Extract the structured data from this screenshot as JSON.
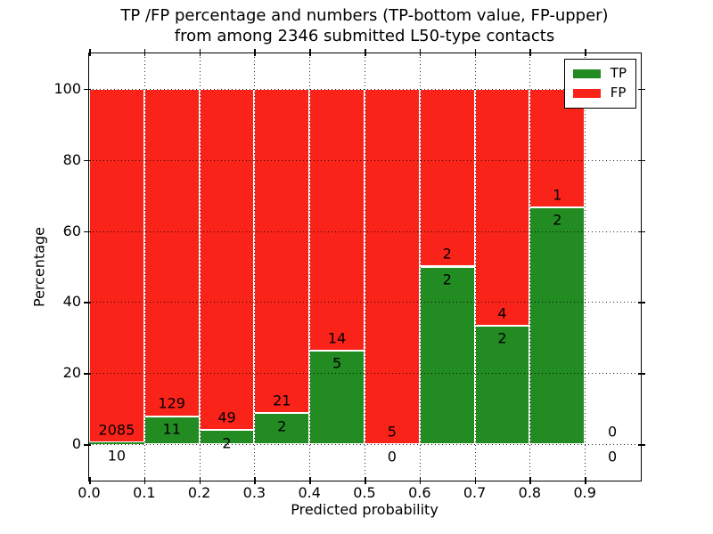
{
  "chart_data": {
    "type": "bar",
    "stacked": true,
    "normalized": "each bin scaled to 100%",
    "title_line1": "TP /FP percentage and numbers (TP-bottom value, FP-upper)",
    "title_line2": "from among 2346 submitted L50-type contacts",
    "title": "TP /FP percentage and numbers (TP-bottom value, FP-upper) from among 2346 submitted L50-type contacts",
    "xlabel": "Predicted probability",
    "ylabel": "Percentage",
    "xlim": [
      0.0,
      1.0
    ],
    "ylim": [
      -10,
      110
    ],
    "grid": true,
    "legend_position": "upper right",
    "total_contacts": 2346,
    "bin_width": 0.1,
    "annotation_rule": "FP count printed above TP/FP boundary, TP count printed below it",
    "label_offset_pct": 3.6,
    "series": [
      {
        "name": "TP",
        "color": "#228b22"
      },
      {
        "name": "FP",
        "color": "#fa231a"
      }
    ],
    "xticks": [
      {
        "value": 0.0,
        "label": "0.0"
      },
      {
        "value": 0.1,
        "label": "0.1"
      },
      {
        "value": 0.2,
        "label": "0.2"
      },
      {
        "value": 0.3,
        "label": "0.3"
      },
      {
        "value": 0.4,
        "label": "0.4"
      },
      {
        "value": 0.5,
        "label": "0.5"
      },
      {
        "value": 0.6,
        "label": "0.6"
      },
      {
        "value": 0.7,
        "label": "0.7"
      },
      {
        "value": 0.8,
        "label": "0.8"
      },
      {
        "value": 0.9,
        "label": "0.9"
      }
    ],
    "yticks": [
      {
        "value": 0,
        "label": "0"
      },
      {
        "value": 20,
        "label": "20"
      },
      {
        "value": 40,
        "label": "40"
      },
      {
        "value": 60,
        "label": "60"
      },
      {
        "value": 80,
        "label": "80"
      },
      {
        "value": 100,
        "label": "100"
      }
    ],
    "bins": [
      {
        "x_start": 0.0,
        "x_end": 0.1,
        "tp_count": 10,
        "fp_count": 2085,
        "tp_pct": 0.48,
        "fp_pct": 99.52
      },
      {
        "x_start": 0.1,
        "x_end": 0.2,
        "tp_count": 11,
        "fp_count": 129,
        "tp_pct": 7.86,
        "fp_pct": 92.14
      },
      {
        "x_start": 0.2,
        "x_end": 0.3,
        "tp_count": 2,
        "fp_count": 49,
        "tp_pct": 3.92,
        "fp_pct": 96.08
      },
      {
        "x_start": 0.3,
        "x_end": 0.4,
        "tp_count": 2,
        "fp_count": 21,
        "tp_pct": 8.7,
        "fp_pct": 91.3
      },
      {
        "x_start": 0.4,
        "x_end": 0.5,
        "tp_count": 5,
        "fp_count": 14,
        "tp_pct": 26.32,
        "fp_pct": 73.68
      },
      {
        "x_start": 0.5,
        "x_end": 0.6,
        "tp_count": 0,
        "fp_count": 5,
        "tp_pct": 0,
        "fp_pct": 100
      },
      {
        "x_start": 0.6,
        "x_end": 0.7,
        "tp_count": 2,
        "fp_count": 2,
        "tp_pct": 50,
        "fp_pct": 50
      },
      {
        "x_start": 0.7,
        "x_end": 0.8,
        "tp_count": 2,
        "fp_count": 4,
        "tp_pct": 33.33,
        "fp_pct": 66.67
      },
      {
        "x_start": 0.8,
        "x_end": 0.9,
        "tp_count": 2,
        "fp_count": 1,
        "tp_pct": 66.67,
        "fp_pct": 33.33
      },
      {
        "x_start": 0.9,
        "x_end": 1.0,
        "tp_count": 0,
        "fp_count": 0,
        "tp_pct": 0,
        "fp_pct": 0
      }
    ]
  },
  "colors": {
    "tp": "#228b22",
    "fp": "#fa231a",
    "bar_edge": "#ffffff",
    "grid": "#000000",
    "frame": "#000000",
    "background": "#ffffff",
    "text": "#000000"
  }
}
